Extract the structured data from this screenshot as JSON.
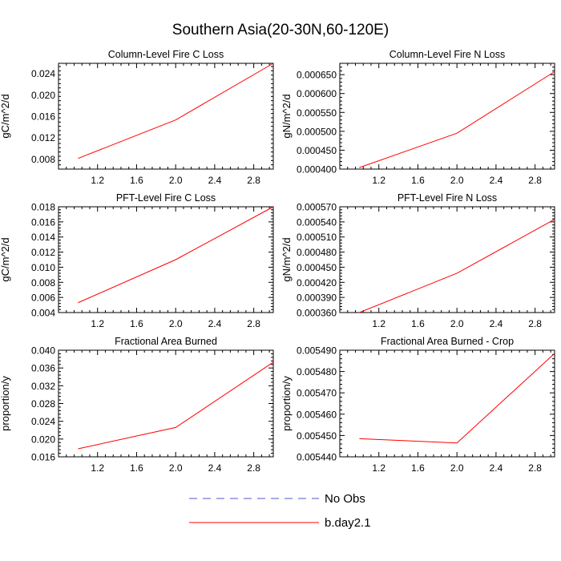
{
  "title": "Southern Asia(20-30N,60-120E)",
  "legend": [
    {
      "label": "No Obs",
      "color": "#5555cc",
      "dashed": true
    },
    {
      "label": "b.day2.1",
      "color": "#ff0000",
      "dashed": false
    }
  ],
  "chart_data": [
    {
      "type": "line",
      "title": "Column-Level Fire C Loss",
      "ylabel": "gC/m^2/d",
      "x": [
        1,
        2,
        3
      ],
      "xlim": [
        0.8,
        3.0
      ],
      "xticks": [
        1.2,
        1.6,
        2.0,
        2.4,
        2.8
      ],
      "xtick_labels": [
        "1.2",
        "1.6",
        "2.0",
        "2.4",
        "2.8"
      ],
      "ylim": [
        0.0061,
        0.0259
      ],
      "yticks": [
        0.008,
        0.012,
        0.016,
        0.02,
        0.024
      ],
      "ytick_labels": [
        "0.008",
        "0.012",
        "0.016",
        "0.020",
        "0.024"
      ],
      "series": [
        {
          "name": "b.day2.1",
          "color": "#ff0000",
          "values": [
            0.0081,
            0.0153,
            0.0259
          ]
        }
      ]
    },
    {
      "type": "line",
      "title": "Column-Level Fire N Loss",
      "ylabel": "gN/m^2/d",
      "x": [
        1,
        2,
        3
      ],
      "xlim": [
        0.8,
        3.0
      ],
      "xticks": [
        1.2,
        1.6,
        2.0,
        2.4,
        2.8
      ],
      "xtick_labels": [
        "1.2",
        "1.6",
        "2.0",
        "2.4",
        "2.8"
      ],
      "ylim": [
        0.0004,
        0.00068
      ],
      "yticks": [
        0.0004,
        0.00045,
        0.0005,
        0.00055,
        0.0006,
        0.00065
      ],
      "ytick_labels": [
        "0.000400",
        "0.000450",
        "0.000500",
        "0.000550",
        "0.000600",
        "0.000650"
      ],
      "series": [
        {
          "name": "b.day2.1",
          "color": "#ff0000",
          "values": [
            0.000404,
            0.000495,
            0.000658
          ]
        }
      ]
    },
    {
      "type": "line",
      "title": "PFT-Level Fire C Loss",
      "ylabel": "gC/m^2/d",
      "x": [
        1,
        2,
        3
      ],
      "xlim": [
        0.8,
        3.0
      ],
      "xticks": [
        1.2,
        1.6,
        2.0,
        2.4,
        2.8
      ],
      "xtick_labels": [
        "1.2",
        "1.6",
        "2.0",
        "2.4",
        "2.8"
      ],
      "ylim": [
        0.004,
        0.018
      ],
      "yticks": [
        0.004,
        0.006,
        0.008,
        0.01,
        0.012,
        0.014,
        0.016,
        0.018
      ],
      "ytick_labels": [
        "0.004",
        "0.006",
        "0.008",
        "0.010",
        "0.012",
        "0.014",
        "0.016",
        "0.018"
      ],
      "series": [
        {
          "name": "b.day2.1",
          "color": "#ff0000",
          "values": [
            0.0053,
            0.011,
            0.018
          ]
        }
      ]
    },
    {
      "type": "line",
      "title": "PFT-Level Fire N Loss",
      "ylabel": "gN/m^2/d",
      "x": [
        1,
        2,
        3
      ],
      "xlim": [
        0.8,
        3.0
      ],
      "xticks": [
        1.2,
        1.6,
        2.0,
        2.4,
        2.8
      ],
      "xtick_labels": [
        "1.2",
        "1.6",
        "2.0",
        "2.4",
        "2.8"
      ],
      "ylim": [
        0.00036,
        0.00057
      ],
      "yticks": [
        0.00036,
        0.00039,
        0.00042,
        0.00045,
        0.00048,
        0.00051,
        0.00054,
        0.00057
      ],
      "ytick_labels": [
        "0.000360",
        "0.000390",
        "0.000420",
        "0.000450",
        "0.000480",
        "0.000510",
        "0.000540",
        "0.000570"
      ],
      "series": [
        {
          "name": "b.day2.1",
          "color": "#ff0000",
          "values": [
            0.00036,
            0.000438,
            0.000545
          ]
        }
      ]
    },
    {
      "type": "line",
      "title": "Fractional Area Burned",
      "ylabel": "proportion/y",
      "x": [
        1,
        2,
        3
      ],
      "xlim": [
        0.8,
        3.0
      ],
      "xticks": [
        1.2,
        1.6,
        2.0,
        2.4,
        2.8
      ],
      "xtick_labels": [
        "1.2",
        "1.6",
        "2.0",
        "2.4",
        "2.8"
      ],
      "ylim": [
        0.016,
        0.04
      ],
      "yticks": [
        0.016,
        0.02,
        0.024,
        0.028,
        0.032,
        0.036,
        0.04
      ],
      "ytick_labels": [
        "0.016",
        "0.020",
        "0.024",
        "0.028",
        "0.032",
        "0.036",
        "0.040"
      ],
      "series": [
        {
          "name": "b.day2.1",
          "color": "#ff0000",
          "values": [
            0.0178,
            0.0226,
            0.0373
          ]
        }
      ]
    },
    {
      "type": "line",
      "title": "Fractional Area Burned - Crop",
      "ylabel": "proportion/y",
      "x": [
        1,
        2,
        3
      ],
      "xlim": [
        0.8,
        3.0
      ],
      "xticks": [
        1.2,
        1.6,
        2.0,
        2.4,
        2.8
      ],
      "xtick_labels": [
        "1.2",
        "1.6",
        "2.0",
        "2.4",
        "2.8"
      ],
      "ylim": [
        0.00544,
        0.00549
      ],
      "yticks": [
        0.00544,
        0.00545,
        0.00546,
        0.00547,
        0.00548,
        0.00549
      ],
      "ytick_labels": [
        "0.005440",
        "0.005450",
        "0.005460",
        "0.005470",
        "0.005480",
        "0.005490"
      ],
      "series": [
        {
          "name": "b.day2.1",
          "color": "#ff0000",
          "values": [
            0.0054485,
            0.0054465,
            0.0054885
          ]
        }
      ]
    }
  ]
}
